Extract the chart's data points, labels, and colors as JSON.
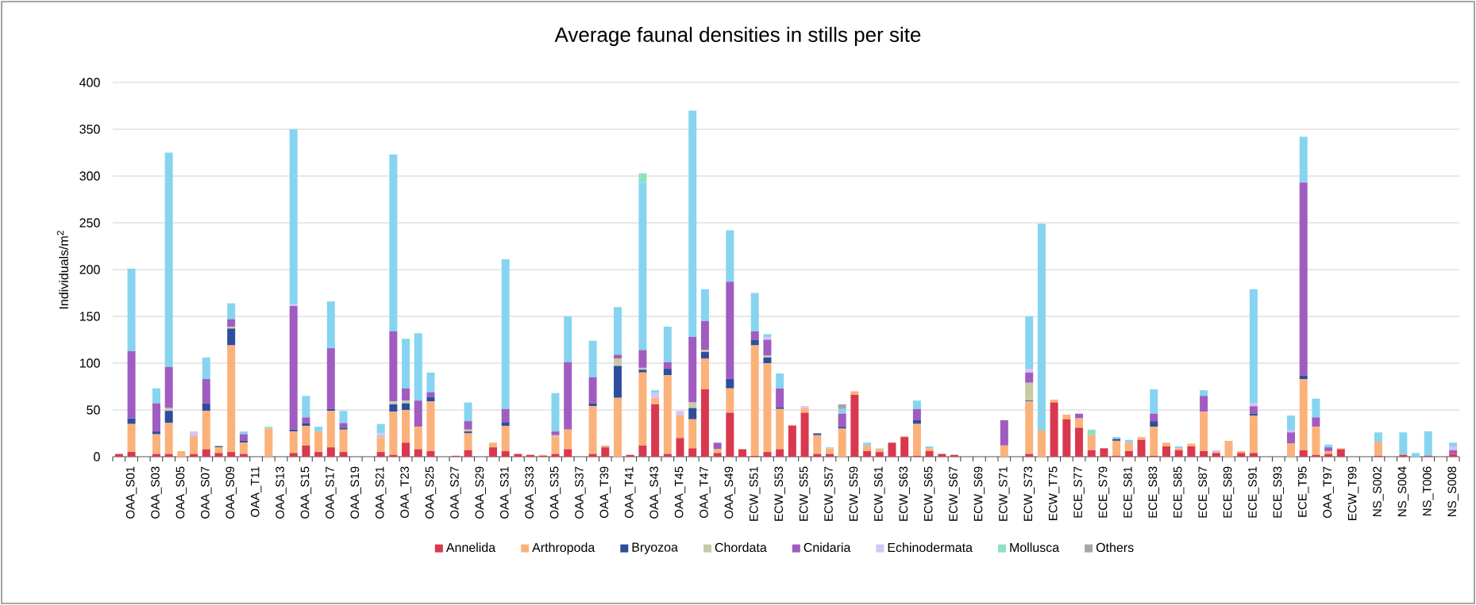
{
  "chart_data": {
    "type": "bar",
    "title": "Average faunal densities in stills per site",
    "ylabel": "Individuals/m$^{2}$",
    "stacked": true,
    "grid": "y",
    "legend": "bottom",
    "ylim": [
      0,
      400
    ],
    "yticks": [
      0,
      50,
      100,
      150,
      200,
      250,
      300,
      350,
      400
    ],
    "categories": [
      null,
      "OAA_S01",
      null,
      "OAA_S03",
      null,
      "OAA_S05",
      null,
      "OAA_S07",
      null,
      "OAA_S09",
      null,
      "OAA_T11",
      null,
      "OAA_S13",
      null,
      "OAA_S15",
      null,
      "OAA_S17",
      null,
      "OAA_S19",
      null,
      "OAA_S21",
      null,
      "OAA_T23",
      null,
      "OAA_S25",
      null,
      "OAA_S27",
      null,
      "OAA_S29",
      null,
      "OAA_S31",
      null,
      "OAA_S33",
      null,
      "OAA_S35",
      null,
      "OAA_S37",
      null,
      "OAA_T39",
      null,
      "OAA_T41",
      null,
      "OAA_S43",
      null,
      "OAA_T45",
      null,
      "OAA_T47",
      null,
      "OAA_S49",
      null,
      "ECW_S51",
      null,
      "ECW_S53",
      null,
      "ECW_S55",
      null,
      "ECW_S57",
      null,
      "ECW_S59",
      null,
      "ECW_S61",
      null,
      "ECW_S63",
      null,
      "ECW_S65",
      null,
      "ECW_S67",
      null,
      "ECW_S69",
      null,
      "ECW_S71",
      null,
      "ECW_S73",
      null,
      "ECW_T75",
      null,
      "ECE_S77",
      null,
      "ECE_S79",
      null,
      "ECE_S81",
      null,
      "ECE_S83",
      null,
      "ECE_S85",
      null,
      "ECE_S87",
      null,
      "ECE_S89",
      null,
      "ECE_S91",
      null,
      "ECE_S93",
      null,
      "ECE_T95",
      null,
      "OAA_T97",
      null,
      "ECW_T99",
      null,
      "NS_S002",
      null,
      "NS_S004",
      null,
      "NS_T006",
      null,
      "NS_S008"
    ],
    "series": [
      {
        "name": "Annelida",
        "color": "#d9384f",
        "values": [
          3,
          5,
          0,
          3,
          3,
          0,
          3,
          8,
          4,
          5,
          3,
          0,
          0,
          0,
          4,
          12,
          5,
          10,
          5,
          0,
          0,
          5,
          2,
          15,
          8,
          6,
          0,
          1,
          7,
          0,
          10,
          6,
          3,
          2,
          1,
          3,
          8,
          0,
          3,
          10,
          0,
          2,
          12,
          56,
          3,
          20,
          9,
          72,
          4,
          47,
          8,
          1,
          5,
          8,
          33,
          47,
          3,
          3,
          0,
          66,
          6,
          5,
          15,
          21,
          1,
          6,
          3,
          2,
          0,
          0,
          0,
          0,
          0,
          3,
          0,
          58,
          40,
          31,
          7,
          9,
          1,
          6,
          18,
          1,
          11,
          7,
          11,
          6,
          4,
          0,
          4,
          4,
          0,
          0,
          0,
          7,
          2,
          3,
          8,
          0,
          0,
          1,
          0,
          2,
          0,
          1,
          0,
          3
        ]
      },
      {
        "name": "Arthropoda",
        "color": "#fbb27a",
        "values": [
          0,
          30,
          0,
          21,
          33,
          6,
          19,
          41,
          6,
          114,
          12,
          0,
          30,
          0,
          23,
          21,
          22,
          39,
          24,
          0,
          0,
          15,
          46,
          35,
          24,
          53,
          0,
          0,
          18,
          0,
          5,
          27,
          0,
          0,
          1,
          18,
          21,
          0,
          51,
          2,
          63,
          0,
          78,
          7,
          84,
          24,
          31,
          33,
          4,
          26,
          0,
          118,
          95,
          43,
          1,
          5,
          20,
          6,
          30,
          4,
          6,
          3,
          0,
          1,
          34,
          3,
          0,
          0,
          0,
          0,
          0,
          12,
          0,
          56,
          28,
          3,
          5,
          10,
          16,
          0,
          16,
          9,
          3,
          31,
          4,
          2,
          3,
          42,
          1,
          17,
          2,
          40,
          0,
          0,
          14,
          76,
          30,
          3,
          1,
          0,
          0,
          15,
          0,
          0,
          0,
          0,
          0,
          0
        ]
      },
      {
        "name": "Bryozoa",
        "color": "#2e4d9e",
        "values": [
          0,
          6,
          0,
          3,
          13,
          0,
          0,
          8,
          1,
          18,
          2,
          0,
          0,
          0,
          2,
          3,
          0,
          2,
          2,
          0,
          0,
          0,
          8,
          7,
          0,
          5,
          0,
          0,
          2,
          0,
          0,
          4,
          0,
          0,
          0,
          0,
          0,
          0,
          3,
          0,
          34,
          0,
          3,
          0,
          7,
          0,
          12,
          7,
          0,
          10,
          0,
          6,
          6,
          2,
          0,
          0,
          2,
          0,
          2,
          0,
          0,
          0,
          0,
          0,
          4,
          0,
          0,
          0,
          0,
          0,
          0,
          0,
          0,
          1,
          0,
          0,
          0,
          0,
          0,
          0,
          2,
          0,
          0,
          6,
          0,
          0,
          0,
          0,
          0,
          0,
          0,
          2,
          0,
          0,
          0,
          4,
          0,
          0,
          0,
          0,
          0,
          0,
          0,
          0,
          0,
          0,
          0,
          0
        ]
      },
      {
        "name": "Chordata",
        "color": "#c9c9a6",
        "values": [
          0,
          0,
          0,
          0,
          3,
          0,
          0,
          0,
          1,
          2,
          0,
          0,
          0,
          0,
          0,
          0,
          0,
          0,
          0,
          0,
          0,
          2,
          3,
          3,
          0,
          0,
          0,
          0,
          2,
          0,
          0,
          0,
          0,
          0,
          0,
          2,
          0,
          0,
          0,
          0,
          8,
          0,
          2,
          0,
          0,
          0,
          6,
          2,
          0,
          0,
          0,
          0,
          2,
          0,
          0,
          0,
          0,
          0,
          0,
          0,
          0,
          0,
          0,
          0,
          0,
          0,
          0,
          0,
          0,
          0,
          0,
          0,
          0,
          19,
          0,
          0,
          0,
          0,
          0,
          0,
          0,
          0,
          0,
          0,
          0,
          0,
          0,
          0,
          0,
          0,
          0,
          0,
          0,
          0,
          0,
          0,
          0,
          0,
          0,
          0,
          0,
          0,
          0,
          0,
          0,
          0,
          0,
          0
        ]
      },
      {
        "name": "Cnidaria",
        "color": "#a05cc0",
        "values": [
          0,
          72,
          0,
          30,
          44,
          0,
          0,
          26,
          0,
          8,
          7,
          0,
          0,
          0,
          132,
          6,
          0,
          65,
          5,
          0,
          0,
          0,
          75,
          13,
          28,
          5,
          0,
          0,
          9,
          0,
          0,
          14,
          0,
          0,
          0,
          4,
          72,
          0,
          28,
          0,
          4,
          0,
          19,
          0,
          7,
          0,
          70,
          31,
          7,
          104,
          0,
          9,
          17,
          20,
          0,
          0,
          0,
          0,
          14,
          0,
          0,
          0,
          0,
          0,
          12,
          0,
          0,
          0,
          0,
          0,
          0,
          27,
          0,
          11,
          0,
          0,
          0,
          5,
          0,
          0,
          0,
          0,
          0,
          8,
          0,
          0,
          0,
          17,
          0,
          0,
          0,
          8,
          0,
          0,
          12,
          206,
          10,
          4,
          0,
          0,
          0,
          0,
          0,
          0,
          0,
          0,
          0,
          4
        ]
      },
      {
        "name": "Echinodermata",
        "color": "#d7c3f5",
        "values": [
          0,
          0,
          0,
          0,
          0,
          0,
          5,
          0,
          0,
          0,
          0,
          0,
          0,
          0,
          2,
          0,
          0,
          0,
          0,
          0,
          0,
          3,
          0,
          0,
          0,
          0,
          0,
          0,
          0,
          0,
          0,
          0,
          0,
          0,
          0,
          0,
          0,
          0,
          0,
          0,
          0,
          0,
          0,
          5,
          0,
          5,
          0,
          0,
          0,
          0,
          0,
          0,
          3,
          0,
          0,
          2,
          0,
          0,
          0,
          0,
          0,
          0,
          0,
          0,
          0,
          0,
          0,
          0,
          0,
          0,
          0,
          0,
          0,
          4,
          0,
          0,
          0,
          0,
          0,
          0,
          0,
          0,
          0,
          0,
          0,
          0,
          0,
          0,
          2,
          0,
          0,
          3,
          0,
          0,
          2,
          0,
          0,
          0,
          0,
          0,
          0,
          0,
          0,
          0,
          0,
          0,
          0,
          4
        ]
      },
      {
        "color": "#86d4f0",
        "values": [
          0,
          88,
          0,
          16,
          229,
          0,
          0,
          23,
          0,
          17,
          3,
          0,
          0,
          0,
          187,
          23,
          5,
          50,
          13,
          0,
          0,
          10,
          189,
          53,
          72,
          21,
          0,
          0,
          20,
          0,
          0,
          160,
          0,
          0,
          0,
          41,
          49,
          0,
          39,
          0,
          51,
          0,
          179,
          3,
          38,
          0,
          242,
          34,
          0,
          55,
          0,
          41,
          3,
          16,
          0,
          0,
          0,
          1,
          5,
          0,
          3,
          1,
          0,
          0,
          9,
          2,
          0,
          0,
          0,
          0,
          0,
          0,
          0,
          56,
          221,
          0,
          0,
          0,
          0,
          0,
          2,
          3,
          0,
          26,
          0,
          2,
          0,
          6,
          0,
          0,
          0,
          122,
          0,
          0,
          16,
          49,
          20,
          3,
          0,
          0,
          0,
          10,
          0,
          24,
          4,
          26,
          0,
          4
        ]
      },
      {
        "name": "Mollusca",
        "color": "#8fe0c0",
        "values": [
          0,
          0,
          0,
          0,
          0,
          0,
          0,
          0,
          0,
          0,
          0,
          0,
          2,
          0,
          0,
          0,
          0,
          0,
          0,
          0,
          0,
          0,
          0,
          0,
          0,
          0,
          0,
          0,
          0,
          0,
          0,
          0,
          0,
          0,
          0,
          0,
          0,
          0,
          0,
          0,
          0,
          0,
          10,
          0,
          0,
          0,
          0,
          0,
          0,
          0,
          0,
          0,
          0,
          0,
          0,
          0,
          0,
          0,
          0,
          0,
          0,
          0,
          0,
          0,
          0,
          0,
          0,
          0,
          0,
          0,
          0,
          0,
          0,
          0,
          0,
          0,
          0,
          0,
          6,
          0,
          0,
          0,
          0,
          0,
          0,
          0,
          0,
          0,
          0,
          0,
          0,
          0,
          0,
          0,
          0,
          0,
          0,
          0,
          0,
          0,
          0,
          0,
          0,
          0,
          0,
          0,
          0,
          0
        ]
      },
      {
        "name": "Others",
        "color": "#a6a6a6",
        "values": [
          0,
          0,
          0,
          0,
          0,
          0,
          0,
          0,
          0,
          0,
          0,
          0,
          0,
          0,
          0,
          0,
          0,
          0,
          0,
          0,
          0,
          0,
          0,
          0,
          0,
          0,
          0,
          0,
          0,
          0,
          0,
          0,
          0,
          0,
          0,
          0,
          0,
          0,
          0,
          0,
          0,
          0,
          0,
          0,
          0,
          0,
          0,
          0,
          0,
          0,
          0,
          0,
          0,
          0,
          0,
          0,
          0,
          0,
          5,
          0,
          0,
          0,
          0,
          0,
          0,
          0,
          0,
          0,
          0,
          0,
          0,
          0,
          0,
          0,
          0,
          0,
          0,
          0,
          0,
          0,
          0,
          0,
          0,
          0,
          0,
          0,
          0,
          0,
          0,
          0,
          0,
          0,
          0,
          0,
          0,
          0,
          0,
          0,
          0,
          0,
          0,
          0,
          0,
          0,
          0,
          0,
          0,
          0
        ]
      }
    ]
  }
}
